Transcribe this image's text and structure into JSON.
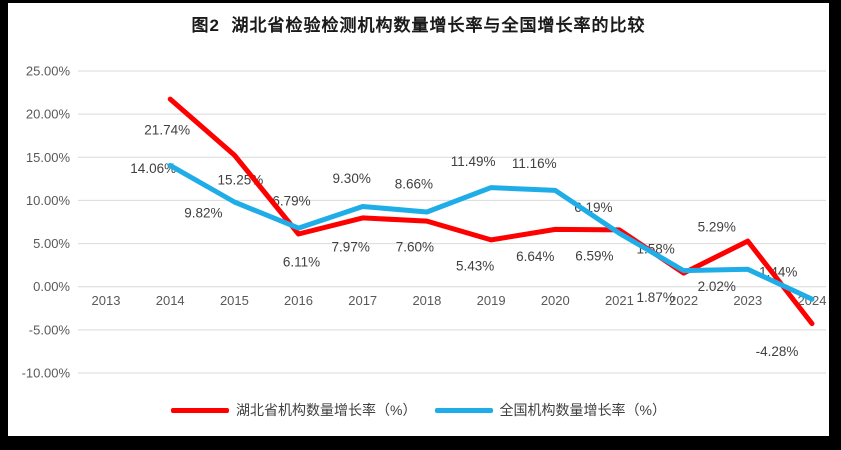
{
  "frame": {
    "border_color": "#000000",
    "background": "#ffffff"
  },
  "chart_data": {
    "type": "line",
    "title": "图2  湖北省检验检测机构数量增长率与全国增长率的比较",
    "xlabel": "",
    "ylabel": "",
    "ylim": [
      -10,
      25
    ],
    "grid": true,
    "legend_position": "bottom",
    "categories": [
      "2013",
      "2014",
      "2015",
      "2016",
      "2017",
      "2018",
      "2019",
      "2020",
      "2021",
      "2022",
      "2023",
      "2024"
    ],
    "y_ticks": [
      {
        "value": 25,
        "label": "25.00%"
      },
      {
        "value": 20,
        "label": "20.00%"
      },
      {
        "value": 15,
        "label": "15.00%"
      },
      {
        "value": 10,
        "label": "10.00%"
      },
      {
        "value": 5,
        "label": "5.00%"
      },
      {
        "value": 0,
        "label": "0.00%"
      },
      {
        "value": -5,
        "label": "-5.00%"
      },
      {
        "value": -10,
        "label": "-10.00%"
      }
    ],
    "series": [
      {
        "name": "湖北省机构数量增长率（%）",
        "color": "#FF0000",
        "values": [
          null,
          21.74,
          15.25,
          6.11,
          7.97,
          7.6,
          5.43,
          6.64,
          6.59,
          1.58,
          5.29,
          -4.28
        ],
        "labels": [
          null,
          "21.74%",
          "15.25%",
          "6.11%",
          "7.97%",
          "7.60%",
          "5.43%",
          "6.64%",
          "6.59%",
          "1.58%",
          "5.29%",
          "-4.28%"
        ],
        "label_offsets": [
          null,
          [
            -3,
            31
          ],
          [
            6,
            25
          ],
          [
            3,
            28
          ],
          [
            -12,
            29
          ],
          [
            -12,
            26
          ],
          [
            -16,
            26
          ],
          [
            -20,
            27
          ],
          [
            -25,
            26
          ],
          [
            -28,
            -24
          ],
          [
            -31,
            -14
          ],
          [
            -35,
            28
          ]
        ]
      },
      {
        "name": "全国机构数量增长率（%）",
        "color": "#1FADE8",
        "values": [
          null,
          14.06,
          9.82,
          6.79,
          9.3,
          8.66,
          11.49,
          11.16,
          6.19,
          1.87,
          2.02,
          -1.44
        ],
        "labels": [
          null,
          "14.06%",
          "9.82%",
          "6.79%",
          "9.30%",
          "8.66%",
          "11.49%",
          "11.16%",
          "6.19%",
          "1.87%",
          "2.02%",
          "-1.44%"
        ],
        "label_offsets": [
          null,
          [
            -17,
            3
          ],
          [
            -31,
            11
          ],
          [
            -7,
            -27
          ],
          [
            -11,
            -28
          ],
          [
            -13,
            -28
          ],
          [
            -18,
            -26
          ],
          [
            -21,
            -27
          ],
          [
            -26,
            -26
          ],
          [
            -28,
            27
          ],
          [
            -31,
            17
          ],
          [
            -36,
            -27
          ]
        ]
      }
    ],
    "style": {
      "gridline_color": "#D9D9D9",
      "axis_text_color": "#595959",
      "data_label_color": "#404040",
      "line_width": 5
    }
  }
}
